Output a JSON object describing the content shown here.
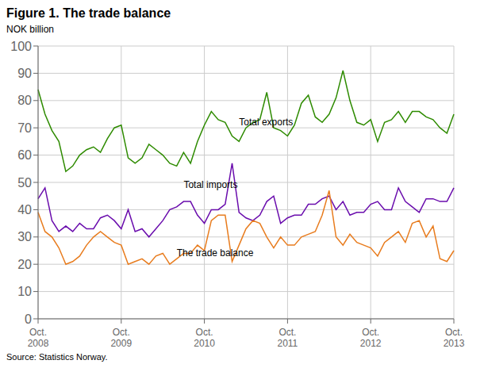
{
  "chart_data": {
    "type": "line",
    "title": "Figure 1. The trade balance",
    "ylabel": "NOK billion",
    "source": "Source: Statistics Norway.",
    "categories": [
      "Oct.\n2008",
      null,
      null,
      null,
      null,
      null,
      null,
      null,
      null,
      null,
      null,
      null,
      "Oct.\n2009",
      null,
      null,
      null,
      null,
      null,
      null,
      null,
      null,
      null,
      null,
      null,
      "Oct.\n2010",
      null,
      null,
      null,
      null,
      null,
      null,
      null,
      null,
      null,
      null,
      null,
      "Oct.\n2011",
      null,
      null,
      null,
      null,
      null,
      null,
      null,
      null,
      null,
      null,
      null,
      "Oct.\n2012",
      null,
      null,
      null,
      null,
      null,
      null,
      null,
      null,
      null,
      null,
      null,
      "Oct.\n2013"
    ],
    "series": [
      {
        "color": "#2e8b00",
        "values": [
          84,
          75,
          69,
          65,
          54,
          56,
          60,
          62,
          63,
          61,
          66,
          70,
          71,
          59,
          57,
          59,
          64,
          62,
          60,
          57,
          56,
          61,
          57,
          65,
          71,
          76,
          73,
          72,
          67,
          65,
          70,
          72,
          73,
          83,
          70,
          69,
          67,
          71,
          79,
          82,
          74,
          72,
          75,
          81,
          91,
          80,
          72,
          71,
          73,
          65,
          72,
          73,
          76,
          72,
          76,
          76,
          74,
          73,
          70,
          68,
          75
        ]
      },
      {
        "color": "#6a0dad",
        "values": [
          44,
          48,
          36,
          32,
          34,
          32,
          35,
          33,
          33,
          37,
          38,
          36,
          33,
          40,
          32,
          33,
          30,
          33,
          36,
          40,
          41,
          43,
          43,
          38,
          35,
          40,
          40,
          42,
          57,
          39,
          37,
          36,
          38,
          43,
          45,
          35,
          37,
          38,
          38,
          42,
          42,
          44,
          45,
          40,
          43,
          38,
          39,
          39,
          42,
          43,
          40,
          40,
          48,
          43,
          41,
          39,
          44,
          44,
          43,
          43,
          48
        ]
      },
      {
        "color": "#e87c1e",
        "values": [
          39,
          32,
          30,
          26,
          20,
          21,
          23,
          27,
          30,
          32,
          30,
          28,
          27,
          20,
          21,
          22,
          20,
          23,
          24,
          20,
          22,
          24,
          24,
          27,
          25,
          36,
          38,
          38,
          21,
          27,
          33,
          36,
          35,
          30,
          26,
          30,
          27,
          27,
          30,
          31,
          32,
          38,
          47,
          30,
          27,
          31,
          28,
          27,
          26,
          23,
          28,
          30,
          32,
          28,
          35,
          36,
          30,
          34,
          22,
          21,
          25
        ]
      }
    ],
    "ylim": [
      0,
      100
    ],
    "yticks": [
      0,
      10,
      20,
      30,
      40,
      50,
      60,
      70,
      80,
      90,
      100
    ],
    "grid": true,
    "annotations": [
      {
        "text": "Total exports",
        "x": 29,
        "y": 71
      },
      {
        "text": "Total imports",
        "x": 21,
        "y": 48
      },
      {
        "text": "The trade balance",
        "x": 20,
        "y": 23
      }
    ]
  }
}
